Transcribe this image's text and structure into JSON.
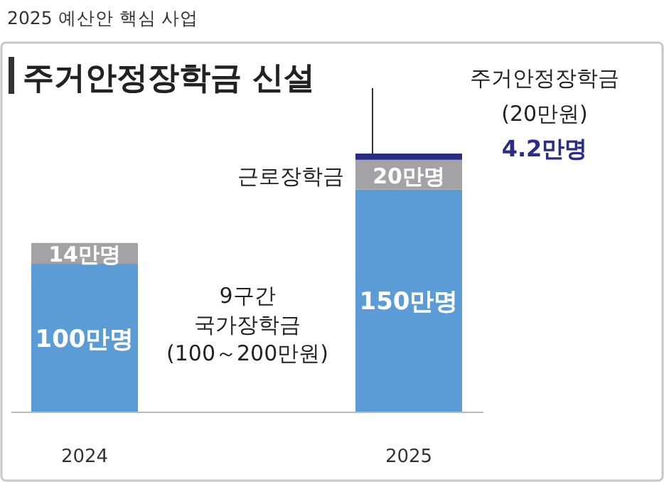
{
  "chart_data": {
    "type": "bar",
    "stacked": true,
    "title": "주거안정장학금 신설",
    "subtitle": "2025 예산안 핵심 사업",
    "categories": [
      "2024",
      "2025"
    ],
    "series": [
      {
        "color": "#5b9bd6",
        "values": [
          100,
          150
        ],
        "value_labels": [
          "100만명",
          "150만명"
        ]
      },
      {
        "name": "근로장학금",
        "color": "#a3a3a5",
        "values": [
          14,
          20
        ],
        "value_labels": [
          "14만명",
          "20만명"
        ]
      },
      {
        "name": "주거안정장학금",
        "color": "#2a2d86",
        "values": [
          null,
          4.2
        ]
      }
    ],
    "annotations": [
      "9구간\n국가장학금\n(100～200만원)",
      "(20만원)",
      "4.2만명"
    ]
  }
}
